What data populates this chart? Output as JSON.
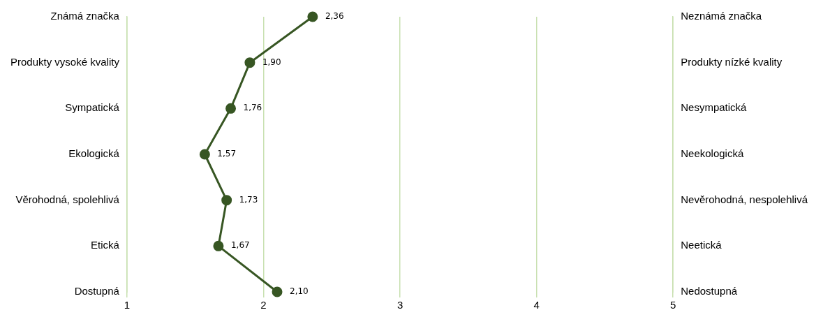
{
  "chart_data": {
    "type": "line",
    "orientation": "horizontal",
    "categories": [
      "Známá značka",
      "Produkty vysoké kvality",
      "Sympatická",
      "Ekologická",
      "Věrohodná, spolehlivá",
      "Etická",
      "Dostupná"
    ],
    "y2_categories": [
      "Neznámá značka",
      "Produkty nízké kvality",
      "Nesympatická",
      "Neekologická",
      "Nevěrohodná, nespolehlivá",
      "Neetická",
      "Nedostupná"
    ],
    "series": [
      {
        "color": "#375623",
        "values": [
          2.36,
          1.9,
          1.76,
          1.57,
          1.73,
          1.67,
          2.1
        ],
        "value_labels": [
          "2,36",
          "1,90",
          "1,76",
          "1,57",
          "1,73",
          "1,67",
          "2,10"
        ]
      }
    ],
    "xlim": [
      1,
      5
    ],
    "xticks": [
      1,
      2,
      3,
      4,
      5
    ],
    "grid": "x",
    "marker": "circle",
    "line_style": "solid",
    "legend": false
  }
}
